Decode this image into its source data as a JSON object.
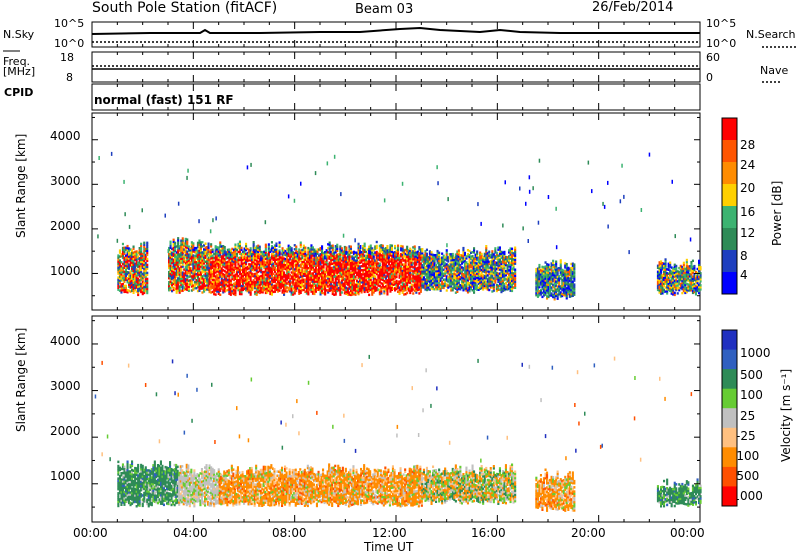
{
  "header": {
    "station": "South Pole Station (fitACF)",
    "beam": "Beam 03",
    "date": "26/Feb/2014"
  },
  "panels": {
    "nsky_label": "N.Sky",
    "nsky_ticks": [
      "10^5",
      "10^0"
    ],
    "nsearch_label": "N.Search",
    "nsearch_ticks": [
      "10^5",
      "10^0"
    ],
    "freq_label": "Freq.",
    "freq_unit": "[MHz]",
    "freq_ticks": [
      "18",
      "8"
    ],
    "nave_label": "Nave",
    "nave_ticks": [
      "60",
      "0"
    ],
    "cpid_label": "CPID",
    "cpid_value": "normal (fast) 151 RF"
  },
  "chart_data": [
    {
      "type": "heatmap",
      "title": "",
      "xlabel": "Time UT",
      "ylabel": "Slant Range [km]",
      "x_ticks": [
        "00:00",
        "04:00",
        "08:00",
        "12:00",
        "16:00",
        "20:00",
        "00:00"
      ],
      "x_range_hours": [
        0,
        24
      ],
      "y_ticks": [
        1000,
        2000,
        3000,
        4000
      ],
      "y_range_km": [
        180,
        4600
      ],
      "colorbar": {
        "label": "Power [dB]",
        "ticks": [
          "4",
          "8",
          "12",
          "16",
          "20",
          "24",
          "28"
        ],
        "colors": [
          "#0000ff",
          "#1e3fbf",
          "#2e8b57",
          "#3cb371",
          "#ffd000",
          "#ff8c00",
          "#ff5500",
          "#ff0000"
        ]
      },
      "regions": [
        {
          "x": [
            1.0,
            2.2
          ],
          "y": [
            500,
            1700
          ],
          "level": "mixed-high"
        },
        {
          "x": [
            3.0,
            4.6
          ],
          "y": [
            550,
            1800
          ],
          "level": "mixed-high"
        },
        {
          "x": [
            4.6,
            13.0
          ],
          "y": [
            500,
            1700
          ],
          "level": "high"
        },
        {
          "x": [
            13.0,
            16.7
          ],
          "y": [
            550,
            1600
          ],
          "level": "mixed"
        },
        {
          "x": [
            17.5,
            19.0
          ],
          "y": [
            400,
            1300
          ],
          "level": "low"
        },
        {
          "x": [
            22.3,
            24.0
          ],
          "y": [
            500,
            1300
          ],
          "level": "mixed"
        }
      ]
    },
    {
      "type": "heatmap",
      "title": "",
      "xlabel": "Time UT",
      "ylabel": "Slant Range [km]",
      "x_ticks": [
        "00:00",
        "04:00",
        "08:00",
        "12:00",
        "16:00",
        "20:00",
        "00:00"
      ],
      "x_range_hours": [
        0,
        24
      ],
      "y_ticks": [
        1000,
        2000,
        3000,
        4000
      ],
      "y_range_km": [
        180,
        4600
      ],
      "colorbar": {
        "label": "Velocity [m s⁻¹]",
        "ticks": [
          "1000",
          "500",
          "100",
          "25",
          "-25",
          "-100",
          "-500",
          "-1000"
        ],
        "colors": [
          "#2030c0",
          "#3060c0",
          "#2e8b57",
          "#66cc33",
          "#c0c0c0",
          "#ffc080",
          "#ff8c00",
          "#ff5000",
          "#ff0000"
        ]
      },
      "regions": [
        {
          "x": [
            1.0,
            3.4
          ],
          "y": [
            500,
            1500
          ],
          "level": "positive"
        },
        {
          "x": [
            3.4,
            5.0
          ],
          "y": [
            500,
            1400
          ],
          "level": "near-zero"
        },
        {
          "x": [
            5.0,
            13.0
          ],
          "y": [
            500,
            1400
          ],
          "level": "negative"
        },
        {
          "x": [
            13.0,
            16.7
          ],
          "y": [
            550,
            1400
          ],
          "level": "mixed"
        },
        {
          "x": [
            17.5,
            19.0
          ],
          "y": [
            400,
            1300
          ],
          "level": "negative"
        },
        {
          "x": [
            22.3,
            24.0
          ],
          "y": [
            500,
            1100
          ],
          "level": "positive"
        }
      ]
    }
  ]
}
